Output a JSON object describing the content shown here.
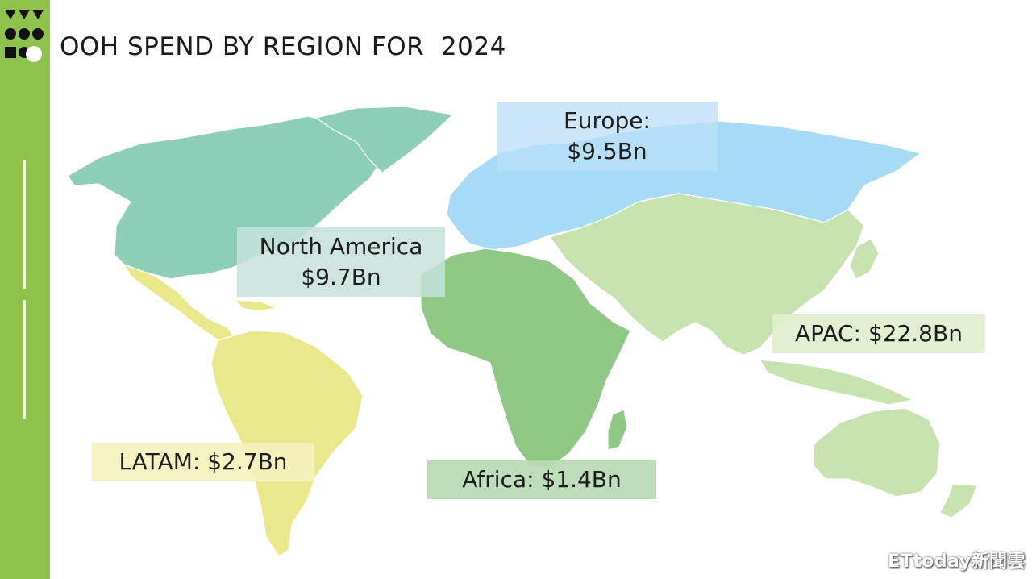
{
  "title": "OOH SPEND BY REGION FOR  2024",
  "regions": {
    "europe": {
      "line1": "Europe:",
      "line2": "$9.5Bn",
      "color": "#a8dcf6"
    },
    "north_america": {
      "line1": "North America",
      "line2": "$9.7Bn",
      "color": "#8ecfba"
    },
    "apac": {
      "text": "APAC: $22.8Bn",
      "color": "#c8e3b0"
    },
    "latam": {
      "text": "LATAM: $2.7Bn",
      "color": "#e9e98c"
    },
    "africa": {
      "text": "Africa: $1.4Bn",
      "color": "#8fc985"
    }
  },
  "sidebar_color": "#8fc24a",
  "watermark": "ETtoday新聞雲"
}
